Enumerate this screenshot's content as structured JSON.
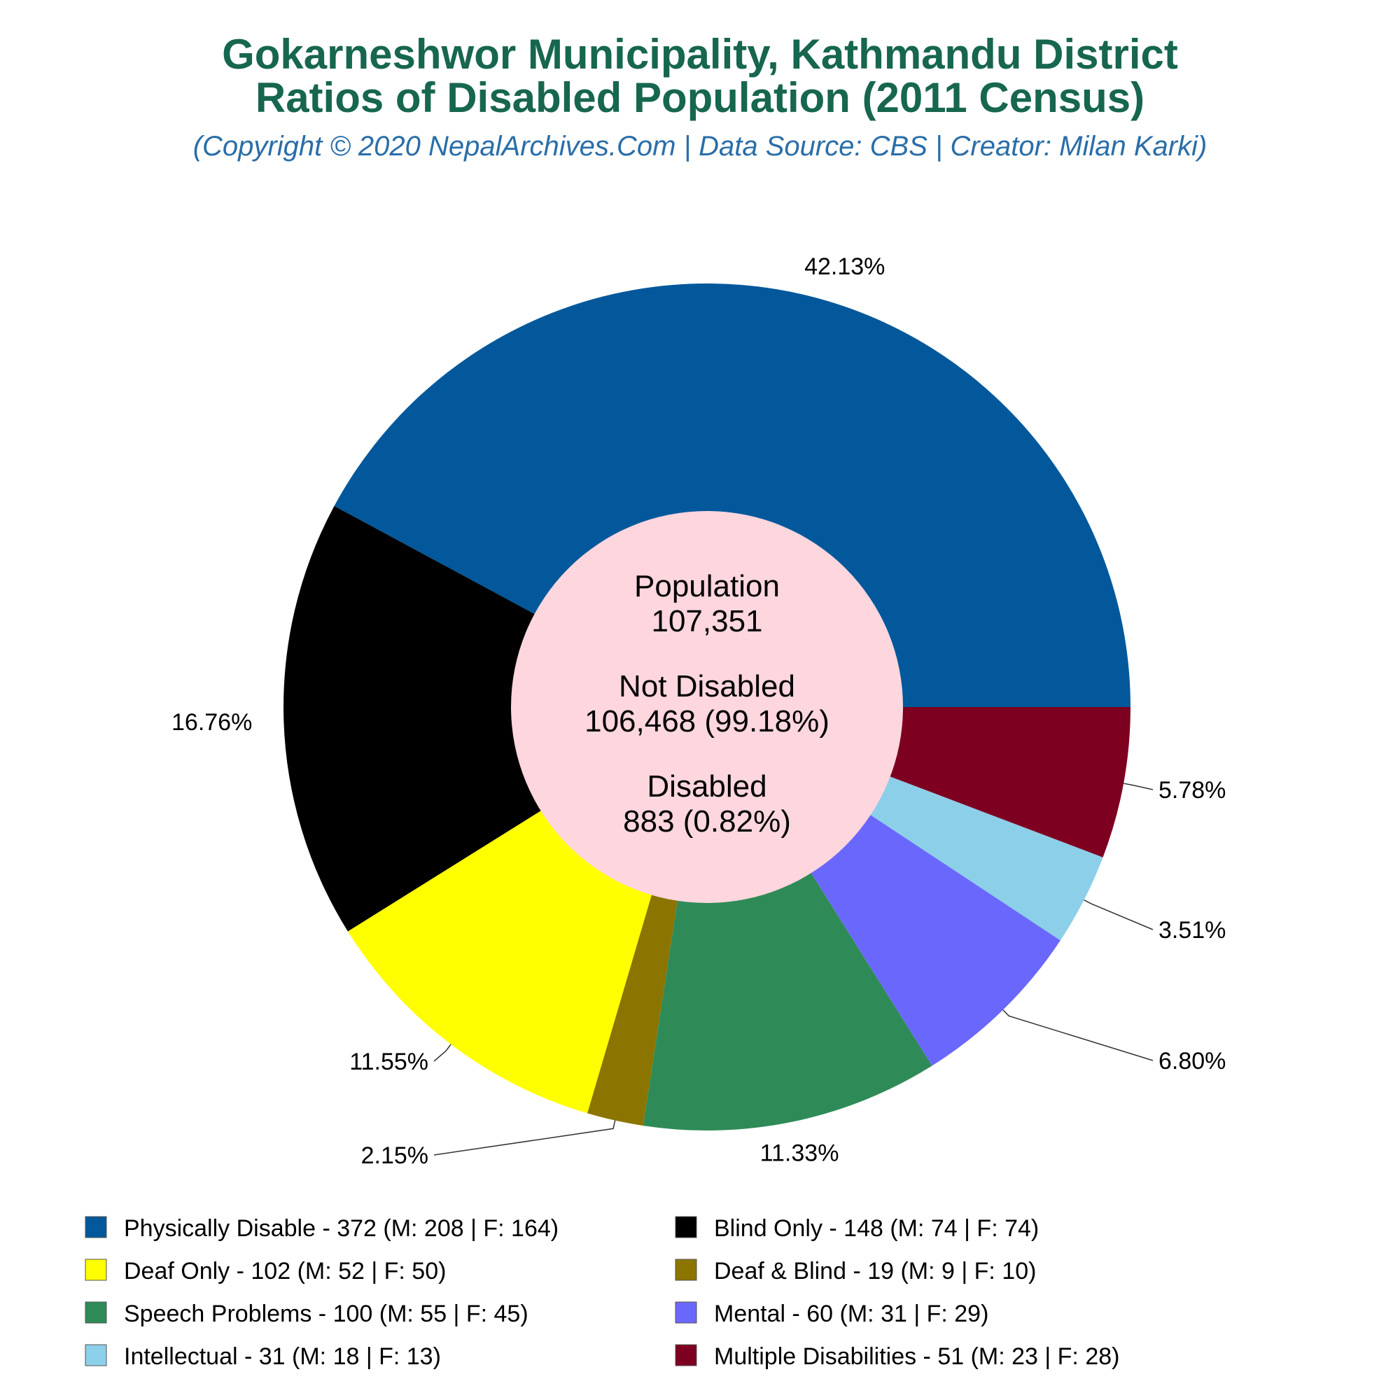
{
  "chart_data": {
    "type": "pie",
    "title_line1": "Gokarneshwor Municipality, Kathmandu District",
    "title_line2": "Ratios of Disabled Population (2011 Census)",
    "subtitle": "(Copyright © 2020 NepalArchives.Com | Data Source: CBS | Creator: Milan Karki)",
    "center": {
      "population_label": "Population",
      "population_value": "107,351",
      "not_disabled_label": "Not Disabled",
      "not_disabled_value": "106,468 (99.18%)",
      "disabled_label": "Disabled",
      "disabled_value": "883 (0.82%)"
    },
    "slices": [
      {
        "name": "Physically Disable",
        "value": 372,
        "male": 208,
        "female": 164,
        "percent_label": "42.13%",
        "color": "#02589b",
        "legend": "Physically Disable - 372 (M: 208 | F: 164)"
      },
      {
        "name": "Blind Only",
        "value": 148,
        "male": 74,
        "female": 74,
        "percent_label": "16.76%",
        "color": "#000000",
        "legend": "Blind Only - 148 (M: 74 | F: 74)"
      },
      {
        "name": "Deaf Only",
        "value": 102,
        "male": 52,
        "female": 50,
        "percent_label": "11.55%",
        "color": "#ffff00",
        "legend": "Deaf Only - 102 (M: 52 | F: 50)"
      },
      {
        "name": "Deaf & Blind",
        "value": 19,
        "male": 9,
        "female": 10,
        "percent_label": "2.15%",
        "color": "#8b7500",
        "legend": "Deaf & Blind - 19 (M: 9 | F: 10)"
      },
      {
        "name": "Speech Problems",
        "value": 100,
        "male": 55,
        "female": 45,
        "percent_label": "11.33%",
        "color": "#2e8b57",
        "legend": "Speech Problems - 100 (M: 55 | F: 45)"
      },
      {
        "name": "Mental",
        "value": 60,
        "male": 31,
        "female": 29,
        "percent_label": "6.80%",
        "color": "#6a68fc",
        "legend": "Mental - 60 (M: 31 | F: 29)"
      },
      {
        "name": "Intellectual",
        "value": 31,
        "male": 18,
        "female": 13,
        "percent_label": "3.51%",
        "color": "#8ccfe9",
        "legend": "Intellectual - 31 (M: 18 | F: 13)"
      },
      {
        "name": "Multiple Disabilities",
        "value": 51,
        "male": 23,
        "female": 28,
        "percent_label": "5.78%",
        "color": "#7d0021",
        "legend": "Multiple Disabilities - 51 (M: 23 | F: 28)"
      }
    ],
    "legend_placement": "bottom",
    "center_color": "#fdd6de"
  }
}
